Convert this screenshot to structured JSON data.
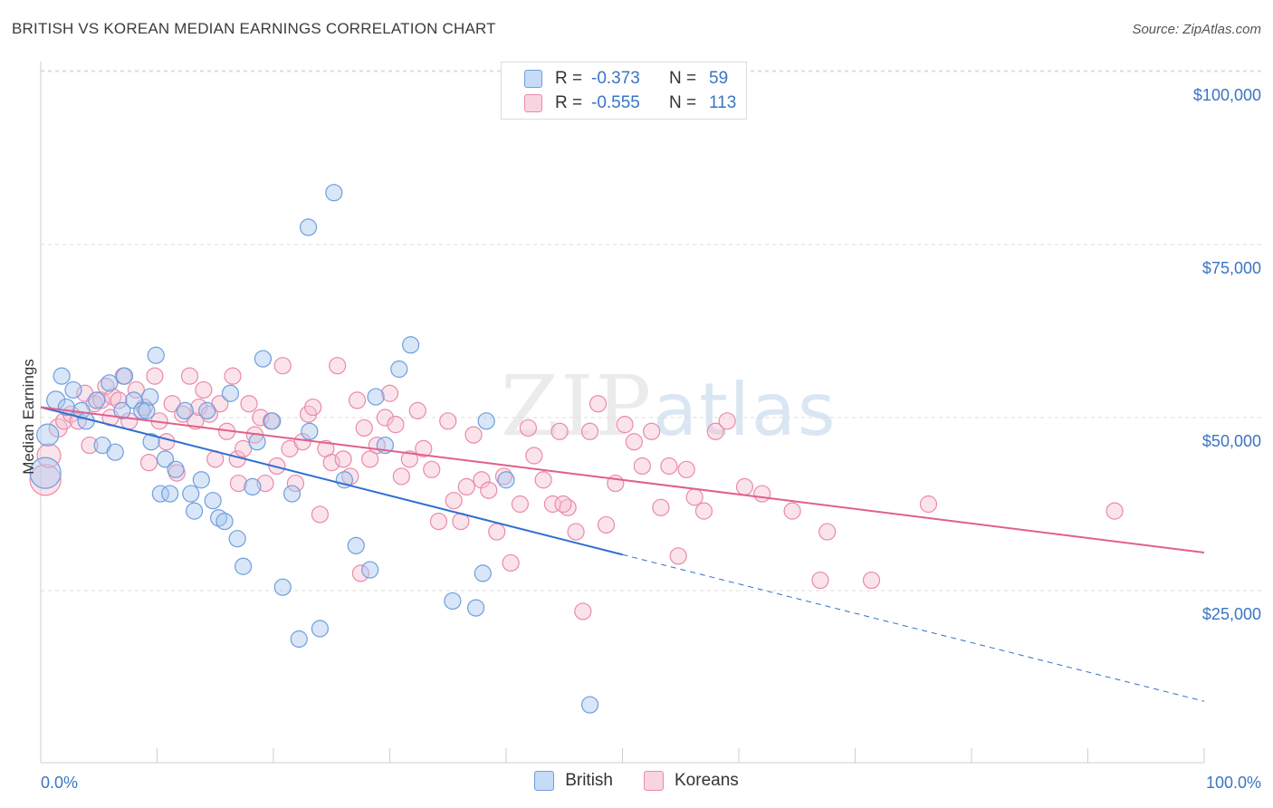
{
  "header": {
    "title": "BRITISH VS KOREAN MEDIAN EARNINGS CORRELATION CHART",
    "source": "Source: ZipAtlas.com"
  },
  "watermark": {
    "zip": "ZIP",
    "atlas": "atlas"
  },
  "legend": {
    "r_label": "R =",
    "n_label": "N =",
    "british": {
      "r": "-0.373",
      "n": "59"
    },
    "koreans": {
      "r": "-0.555",
      "n": "113"
    }
  },
  "bottom_legend": {
    "british": "British",
    "koreans": "Koreans"
  },
  "axis": {
    "x_min_label": "0.0%",
    "x_max_label": "100.0%"
  },
  "colors": {
    "british_fill": "#a9c8f0",
    "british_stroke": "#6e9fdc",
    "british_line": "#2f6fd0",
    "koreans_fill": "#f6c0d2",
    "koreans_stroke": "#e98aab",
    "koreans_line": "#e0608a",
    "tick": "#3a75c4"
  },
  "chart_data": {
    "type": "scatter",
    "title": "BRITISH VS KOREAN MEDIAN EARNINGS CORRELATION CHART",
    "xlabel": "",
    "ylabel": "Median Earnings",
    "xlim": [
      0,
      100
    ],
    "ylim": [
      0,
      105000
    ],
    "y_ticks": [
      {
        "value": 25000,
        "label": "$25,000"
      },
      {
        "value": 50000,
        "label": "$50,000"
      },
      {
        "value": 75000,
        "label": "$75,000"
      },
      {
        "value": 100000,
        "label": "$100,000"
      }
    ],
    "series": [
      {
        "name": "British",
        "trend": {
          "x0": 0,
          "y0": 51500,
          "x1": 50,
          "y1": 30200,
          "dash_to_x": 100,
          "dash_to_y": 9000
        },
        "points": [
          [
            0.4,
            42000,
            16
          ],
          [
            0.6,
            47500,
            11
          ],
          [
            1.3,
            52500,
            9
          ],
          [
            1.8,
            56000,
            8
          ],
          [
            2.2,
            51500,
            8
          ],
          [
            2.8,
            54000,
            8
          ],
          [
            3.5,
            51000,
            8
          ],
          [
            3.9,
            49500,
            8
          ],
          [
            4.8,
            52500,
            8
          ],
          [
            5.3,
            46000,
            8
          ],
          [
            5.9,
            55000,
            8
          ],
          [
            6.4,
            45000,
            8
          ],
          [
            7.0,
            51000,
            8
          ],
          [
            7.2,
            56000,
            8
          ],
          [
            8.0,
            52500,
            8
          ],
          [
            8.7,
            51000,
            8
          ],
          [
            9.1,
            51000,
            8
          ],
          [
            9.4,
            53000,
            8
          ],
          [
            9.5,
            46500,
            8
          ],
          [
            9.9,
            59000,
            8
          ],
          [
            10.3,
            39000,
            8
          ],
          [
            10.7,
            44000,
            8
          ],
          [
            11.1,
            39000,
            8
          ],
          [
            11.6,
            42500,
            8
          ],
          [
            12.4,
            51000,
            8
          ],
          [
            12.9,
            39000,
            8
          ],
          [
            13.2,
            36500,
            8
          ],
          [
            13.8,
            41000,
            8
          ],
          [
            14.3,
            51000,
            8
          ],
          [
            14.8,
            38000,
            8
          ],
          [
            15.3,
            35500,
            8
          ],
          [
            15.8,
            35000,
            8
          ],
          [
            16.3,
            53500,
            8
          ],
          [
            16.9,
            32500,
            8
          ],
          [
            17.4,
            28500,
            8
          ],
          [
            18.2,
            40000,
            8
          ],
          [
            18.6,
            46500,
            8
          ],
          [
            19.1,
            58500,
            8
          ],
          [
            19.9,
            49500,
            8
          ],
          [
            20.8,
            25500,
            8
          ],
          [
            21.6,
            39000,
            8
          ],
          [
            22.2,
            18000,
            8
          ],
          [
            23.0,
            77500,
            8
          ],
          [
            23.1,
            48000,
            8
          ],
          [
            24.0,
            19500,
            8
          ],
          [
            25.2,
            82500,
            8
          ],
          [
            26.1,
            41000,
            8
          ],
          [
            27.1,
            31500,
            8
          ],
          [
            28.3,
            28000,
            8
          ],
          [
            28.8,
            53000,
            8
          ],
          [
            29.6,
            46000,
            8
          ],
          [
            30.8,
            57000,
            8
          ],
          [
            31.8,
            60500,
            8
          ],
          [
            35.4,
            23500,
            8
          ],
          [
            37.4,
            22500,
            8
          ],
          [
            38.0,
            27500,
            8
          ],
          [
            38.3,
            49500,
            8
          ],
          [
            40.0,
            41000,
            8
          ],
          [
            47.2,
            8500,
            8
          ]
        ]
      },
      {
        "name": "Koreans",
        "trend": {
          "x0": 0,
          "y0": 51500,
          "x1": 100,
          "y1": 30500
        },
        "points": [
          [
            0.4,
            41000,
            16
          ],
          [
            0.7,
            44500,
            12
          ],
          [
            1.5,
            48500,
            9
          ],
          [
            2.0,
            49500,
            8
          ],
          [
            2.6,
            50500,
            8
          ],
          [
            3.2,
            49500,
            8
          ],
          [
            3.8,
            53500,
            8
          ],
          [
            4.2,
            46000,
            8
          ],
          [
            4.6,
            52000,
            8
          ],
          [
            5.2,
            52500,
            8
          ],
          [
            5.6,
            54500,
            8
          ],
          [
            6.2,
            53000,
            8
          ],
          [
            6.7,
            52500,
            8
          ],
          [
            7.1,
            56000,
            8
          ],
          [
            7.6,
            49500,
            8
          ],
          [
            8.2,
            54000,
            8
          ],
          [
            8.9,
            51500,
            8
          ],
          [
            9.3,
            43500,
            8
          ],
          [
            9.8,
            56000,
            8
          ],
          [
            10.2,
            49500,
            8
          ],
          [
            10.8,
            46500,
            8
          ],
          [
            11.3,
            52000,
            8
          ],
          [
            11.7,
            42000,
            8
          ],
          [
            12.2,
            50500,
            8
          ],
          [
            12.8,
            56000,
            8
          ],
          [
            13.3,
            49500,
            8
          ],
          [
            13.6,
            51500,
            8
          ],
          [
            14.0,
            54000,
            8
          ],
          [
            14.5,
            50500,
            8
          ],
          [
            15.0,
            44000,
            8
          ],
          [
            15.4,
            52000,
            8
          ],
          [
            16.0,
            48000,
            8
          ],
          [
            16.5,
            56000,
            8
          ],
          [
            16.9,
            44000,
            8
          ],
          [
            17.4,
            45500,
            8
          ],
          [
            17.9,
            52000,
            8
          ],
          [
            18.4,
            47500,
            8
          ],
          [
            18.9,
            50000,
            8
          ],
          [
            19.3,
            40500,
            8
          ],
          [
            19.8,
            49500,
            8
          ],
          [
            20.3,
            43000,
            8
          ],
          [
            20.8,
            57500,
            8
          ],
          [
            21.4,
            45500,
            8
          ],
          [
            21.9,
            40500,
            8
          ],
          [
            22.5,
            46500,
            8
          ],
          [
            23.0,
            50500,
            8
          ],
          [
            23.4,
            51500,
            8
          ],
          [
            24.0,
            36000,
            8
          ],
          [
            24.5,
            45500,
            8
          ],
          [
            25.0,
            43500,
            8
          ],
          [
            25.5,
            57500,
            8
          ],
          [
            26.0,
            44000,
            8
          ],
          [
            26.6,
            41500,
            8
          ],
          [
            27.2,
            52500,
            8
          ],
          [
            27.8,
            48500,
            8
          ],
          [
            28.3,
            44000,
            8
          ],
          [
            28.9,
            46000,
            8
          ],
          [
            29.6,
            50000,
            8
          ],
          [
            30.0,
            53500,
            8
          ],
          [
            30.5,
            49000,
            8
          ],
          [
            31.0,
            41500,
            8
          ],
          [
            31.7,
            44000,
            8
          ],
          [
            32.4,
            51000,
            8
          ],
          [
            32.9,
            45500,
            8
          ],
          [
            33.6,
            42500,
            8
          ],
          [
            34.2,
            35000,
            8
          ],
          [
            35.0,
            49500,
            8
          ],
          [
            35.5,
            38000,
            8
          ],
          [
            36.1,
            35000,
            8
          ],
          [
            36.6,
            40000,
            8
          ],
          [
            37.2,
            47500,
            8
          ],
          [
            37.9,
            41000,
            8
          ],
          [
            38.5,
            39500,
            8
          ],
          [
            39.2,
            33500,
            8
          ],
          [
            39.8,
            41500,
            8
          ],
          [
            40.4,
            29000,
            8
          ],
          [
            41.2,
            37500,
            8
          ],
          [
            41.9,
            48500,
            8
          ],
          [
            42.4,
            44500,
            8
          ],
          [
            43.2,
            41000,
            8
          ],
          [
            44.0,
            37500,
            8
          ],
          [
            44.6,
            48000,
            8
          ],
          [
            45.3,
            37000,
            8
          ],
          [
            46.0,
            33500,
            8
          ],
          [
            46.6,
            22000,
            8
          ],
          [
            47.2,
            48000,
            8
          ],
          [
            47.9,
            52000,
            8
          ],
          [
            48.6,
            34500,
            8
          ],
          [
            49.4,
            40500,
            8
          ],
          [
            50.2,
            49000,
            8
          ],
          [
            51.0,
            46500,
            8
          ],
          [
            51.7,
            43000,
            8
          ],
          [
            52.5,
            48000,
            8
          ],
          [
            53.3,
            37000,
            8
          ],
          [
            54.0,
            43000,
            8
          ],
          [
            54.8,
            30000,
            8
          ],
          [
            55.5,
            42500,
            8
          ],
          [
            56.2,
            38500,
            8
          ],
          [
            57.0,
            36500,
            8
          ],
          [
            58.0,
            48000,
            8
          ],
          [
            59.0,
            49500,
            8
          ],
          [
            60.5,
            40000,
            8
          ],
          [
            62.0,
            39000,
            8
          ],
          [
            64.6,
            36500,
            8
          ],
          [
            67.6,
            33500,
            8
          ],
          [
            67.0,
            26500,
            8
          ],
          [
            71.4,
            26500,
            8
          ],
          [
            76.3,
            37500,
            8
          ],
          [
            92.3,
            36500,
            8
          ],
          [
            27.5,
            27500,
            8
          ],
          [
            17.0,
            40500,
            8
          ],
          [
            6.0,
            50000,
            8
          ],
          [
            44.9,
            37500,
            8
          ]
        ]
      }
    ]
  }
}
